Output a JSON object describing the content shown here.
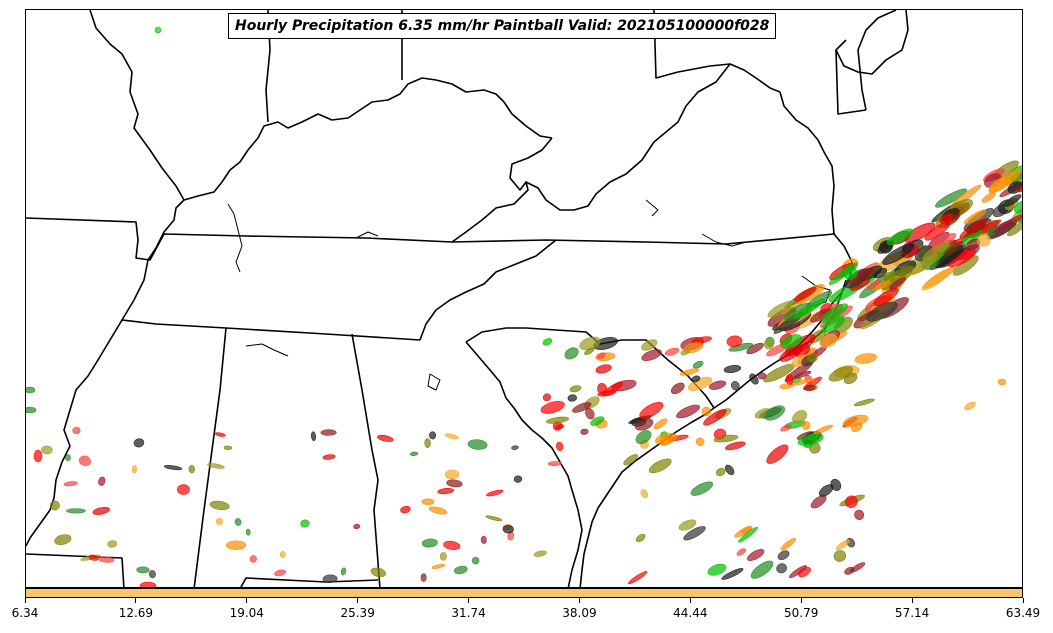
{
  "title": "Hourly Precipitation 6.35 mm/hr Paintball Valid: 202105100000f028",
  "colorbar": {
    "color": "#fec36c",
    "ticks": [
      "6.34",
      "12.69",
      "19.04",
      "25.39",
      "31.74",
      "38.09",
      "44.44",
      "50.79",
      "57.14",
      "63.49"
    ]
  },
  "member_colors": [
    "#ff0000",
    "#e50000",
    "#8b1a1a",
    "#a0172a",
    "#ff8c00",
    "#f5a623",
    "#1a1a1a",
    "#333333",
    "#228b22",
    "#00c000",
    "#808000",
    "#9a9a1e",
    "#ff4040"
  ]
}
